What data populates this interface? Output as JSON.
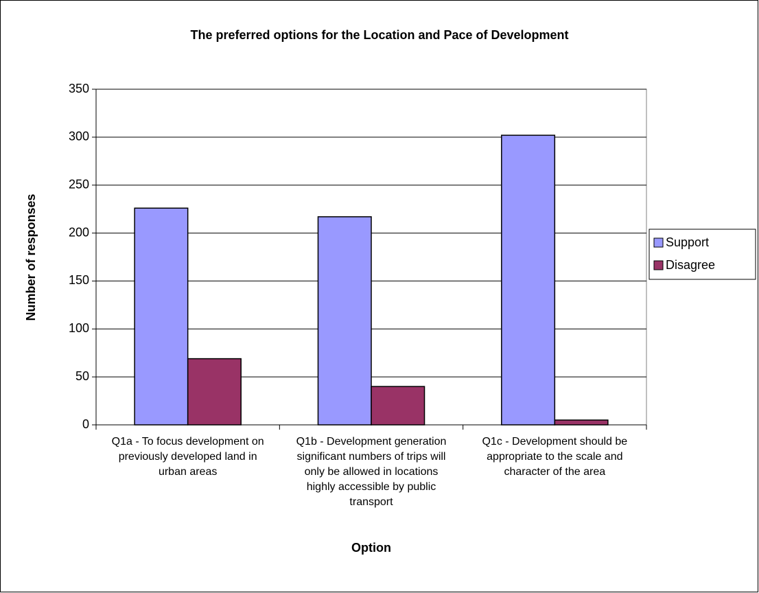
{
  "chart_data": {
    "type": "bar",
    "title": "The preferred options for the Location and Pace of Development",
    "x_label": "Option",
    "y_label": "Number of responses",
    "categories": [
      "Q1a - To focus development on previously developed land in urban areas",
      "Q1b - Development generation significant numbers of trips will only be allowed in locations highly accessible by public transport",
      "Q1c - Development should be appropriate to the scale and character of the area"
    ],
    "series": [
      {
        "name": "Support",
        "color": "#9999ff",
        "values": [
          226,
          217,
          302
        ]
      },
      {
        "name": "Disagree",
        "color": "#993366",
        "values": [
          69,
          40,
          5
        ]
      }
    ],
    "ylim": [
      0,
      350
    ],
    "yticks": [
      0,
      50,
      100,
      150,
      200,
      250,
      300,
      350
    ],
    "grid": true,
    "legend": "right"
  }
}
